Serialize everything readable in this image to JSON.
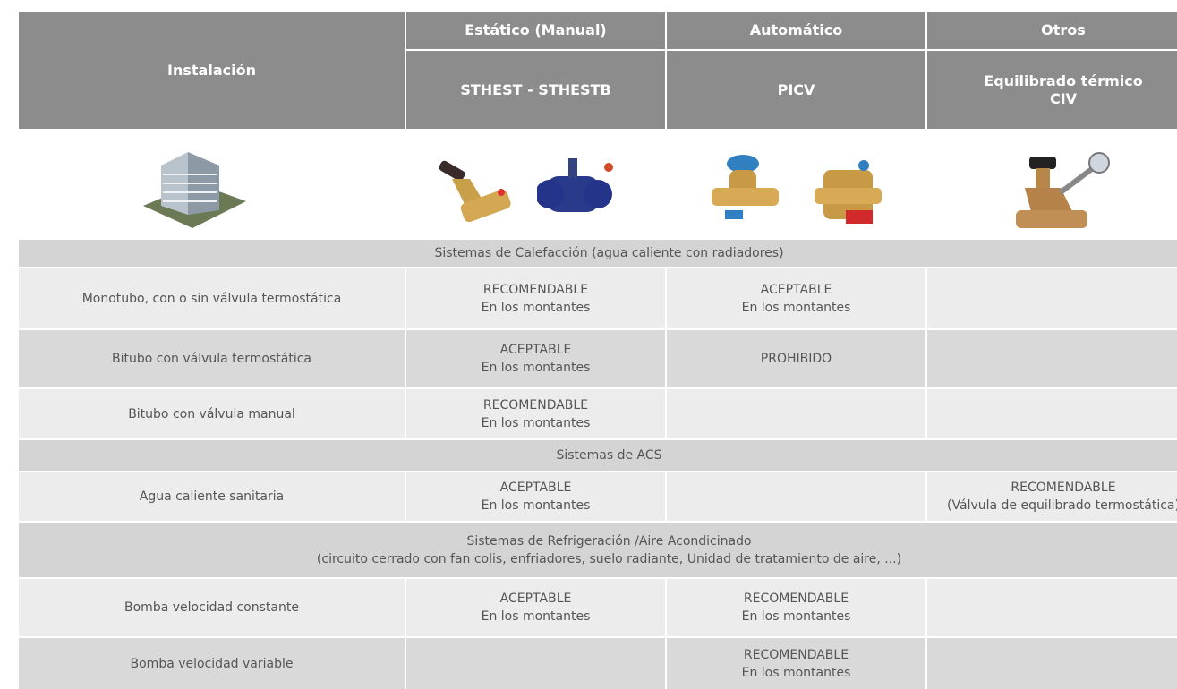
{
  "header": {
    "installation": "Instalación",
    "groups": [
      "Estático (Manual)",
      "Automático",
      "Otros"
    ],
    "products": [
      [
        "STHEST - STHESTB"
      ],
      [
        "PICV"
      ],
      [
        "Equilibrado térmico",
        "CIV"
      ]
    ]
  },
  "sections": [
    {
      "title": [
        "Sistemas de Calefacción (agua caliente con radiadores)"
      ],
      "rows": [
        {
          "label": "Monotubo, con o sin válvula termostática",
          "cells": [
            [
              "RECOMENDABLE",
              "En los montantes"
            ],
            [
              "ACEPTABLE",
              "En los montantes"
            ],
            []
          ]
        },
        {
          "label": "Bitubo con válvula termostática",
          "cells": [
            [
              "ACEPTABLE",
              "En los montantes"
            ],
            [
              "PROHIBIDO"
            ],
            []
          ]
        },
        {
          "label": "Bitubo con válvula manual",
          "cells": [
            [
              "RECOMENDABLE",
              "En los montantes"
            ],
            [],
            []
          ]
        }
      ]
    },
    {
      "title": [
        "Sistemas de  ACS"
      ],
      "rows": [
        {
          "label": "Agua caliente sanitaria",
          "cells": [
            [
              "ACEPTABLE",
              "En los montantes"
            ],
            [],
            [
              "RECOMENDABLE",
              "(Válvula de equilibrado termostática)"
            ]
          ]
        }
      ]
    },
    {
      "title": [
        "Sistemas de Refrigeración /Aire Acondicinado",
        "(circuito cerrado con fan colis, enfriadores, suelo radiante, Unidad de tratamiento de aire, ...)"
      ],
      "rows": [
        {
          "label": "Bomba velocidad constante",
          "cells": [
            [
              "ACEPTABLE",
              "En los montantes"
            ],
            [
              "RECOMENDABLE",
              "En los montantes"
            ],
            []
          ]
        },
        {
          "label": "Bomba velocidad variable",
          "cells": [
            [],
            [
              "RECOMENDABLE",
              "En los montantes"
            ],
            []
          ]
        }
      ]
    }
  ]
}
